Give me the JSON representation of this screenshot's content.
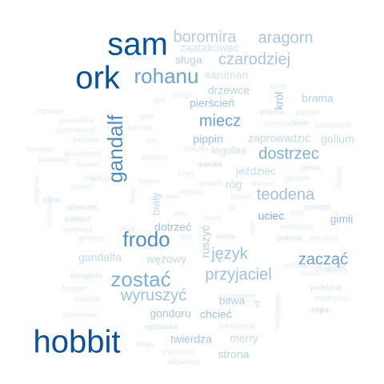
{
  "words": [
    {
      "text": "sam",
      "size": 5,
      "color": "#08519c"
    },
    {
      "text": "ork",
      "size": 5,
      "color": "#08519c"
    },
    {
      "text": "hobbit",
      "size": 5,
      "color": "#08519c"
    },
    {
      "text": "gandalf",
      "size": 4,
      "color": "#4f8fc3"
    },
    {
      "text": "boromira",
      "size": 3,
      "color": "#b3cde3"
    },
    {
      "text": "aragorn",
      "size": 3,
      "color": "#a9c7e2"
    },
    {
      "text": "zaatakować",
      "size": 2,
      "color": "#d4e3f0"
    },
    {
      "text": "czarodziej",
      "size": 3,
      "color": "#a9c7e2"
    },
    {
      "text": "sługa",
      "size": 2,
      "color": "#b8d2e8"
    },
    {
      "text": "rohanu",
      "size": 4,
      "color": "#6aa3d0"
    },
    {
      "text": "sauruna",
      "size": 1,
      "color": "#e1ebf4"
    },
    {
      "text": "saruman",
      "size": 2,
      "color": "#d4e3f0"
    },
    {
      "text": "drzewce",
      "size": 2,
      "color": "#b8d2e8"
    },
    {
      "text": "czele",
      "size": 1,
      "color": "#e1ebf4"
    },
    {
      "text": "król",
      "size": 2,
      "color": "#9fc2df"
    },
    {
      "text": "brama",
      "size": 2,
      "color": "#b8d2e8"
    },
    {
      "text": "pierścień",
      "size": 2,
      "color": "#9fc2df"
    },
    {
      "text": "miecz",
      "size": 3,
      "color": "#6aa3d0"
    },
    {
      "text": "pippina",
      "size": 1,
      "color": "#d4e3f0"
    },
    {
      "text": "kapitan",
      "size": 1,
      "color": "#e1ebf4"
    },
    {
      "text": "odzyskać",
      "size": 1,
      "color": "#e1ebf4"
    },
    {
      "text": "wtem",
      "size": 1,
      "color": "#d4e3f0"
    },
    {
      "text": "pożegnanie",
      "size": 1,
      "color": "#e1ebf4"
    },
    {
      "text": "pippin",
      "size": 2,
      "color": "#9fc2df"
    },
    {
      "text": "zaprowadzić",
      "size": 2,
      "color": "#c6dbee"
    },
    {
      "text": "gollum",
      "size": 2,
      "color": "#c6dbee"
    },
    {
      "text": "legolas",
      "size": 2,
      "color": "#d4e3f0"
    },
    {
      "text": "dostrzec",
      "size": 3,
      "color": "#7fb0d8"
    },
    {
      "text": "ziemia",
      "size": 1,
      "color": "#d4e3f0"
    },
    {
      "text": "urwiska",
      "size": 1,
      "color": "#c6dbee"
    },
    {
      "text": "jeździec",
      "size": 2,
      "color": "#c6dbee"
    },
    {
      "text": "gniazdo",
      "size": 1,
      "color": "#e1ebf4"
    },
    {
      "text": "okazać",
      "size": 1,
      "color": "#e1ebf4"
    },
    {
      "text": "teodena",
      "size": 3,
      "color": "#9fc2df"
    },
    {
      "text": "róg",
      "size": 2,
      "color": "#c6dbee"
    },
    {
      "text": "umrzeć",
      "size": 1,
      "color": "#e1ebf4"
    },
    {
      "text": "smeagol",
      "size": 1,
      "color": "#d4e3f0"
    },
    {
      "text": "uciec",
      "size": 2,
      "color": "#7fb0d8"
    },
    {
      "text": "cały",
      "size": 1,
      "color": "#e1ebf4"
    },
    {
      "text": "gimli",
      "size": 2,
      "color": "#9fc2df"
    },
    {
      "text": "możliwość",
      "size": 1,
      "color": "#e1ebf4"
    },
    {
      "text": "golluma",
      "size": 1,
      "color": "#d4e3f0"
    },
    {
      "text": "mordoru",
      "size": 1,
      "color": "#e1ebf4"
    },
    {
      "text": "frodo",
      "size": 4,
      "color": "#4f8fc3"
    },
    {
      "text": "dotrzeć",
      "size": 2,
      "color": "#9fc2df"
    },
    {
      "text": "ruszyć",
      "size": 2,
      "color": "#b3cde3"
    },
    {
      "text": "język",
      "size": 3,
      "color": "#9fc2df"
    },
    {
      "text": "zacząć",
      "size": 3,
      "color": "#6aa3d0"
    },
    {
      "text": "wężowy",
      "size": 2,
      "color": "#c6dbee"
    },
    {
      "text": "gandalfa",
      "size": 2,
      "color": "#c6dbee"
    },
    {
      "text": "zostać",
      "size": 4,
      "color": "#7fb0d8"
    },
    {
      "text": "przyjaciel",
      "size": 3,
      "color": "#9fc2df"
    },
    {
      "text": "wyruszyć",
      "size": 3,
      "color": "#9fc2df"
    },
    {
      "text": "bitwa",
      "size": 2,
      "color": "#b3cde3"
    },
    {
      "text": "elf",
      "size": 1,
      "color": "#c6dbee"
    },
    {
      "text": "podróżnik",
      "size": 1,
      "color": "#d4e3f0"
    },
    {
      "text": "ostateczny",
      "size": 1,
      "color": "#e1ebf4"
    },
    {
      "text": "trójka",
      "size": 1,
      "color": "#c6dbee"
    },
    {
      "text": "gondoru",
      "size": 2,
      "color": "#a9c7e2"
    },
    {
      "text": "chcieć",
      "size": 2,
      "color": "#9fc2df"
    },
    {
      "text": "wędrówka",
      "size": 1,
      "color": "#d4e3f0"
    },
    {
      "text": "twierdza",
      "size": 2,
      "color": "#a9c7e2"
    },
    {
      "text": "merry",
      "size": 2,
      "color": "#c6dbee"
    },
    {
      "text": "strona",
      "size": 2,
      "color": "#b8d2e8"
    },
    {
      "text": "odźwierny",
      "size": 1,
      "color": "#e1ebf4"
    },
    {
      "text": "isengardu",
      "size": 1,
      "color": "#d4e3f0"
    },
    {
      "text": "fangorn",
      "size": 1,
      "color": "#e1ebf4"
    },
    {
      "text": "zagłada",
      "size": 1,
      "color": "#e1ebf4"
    },
    {
      "text": "pozostawić",
      "size": 1,
      "color": "#e1ebf4"
    },
    {
      "text": "droga",
      "size": 1,
      "color": "#e1ebf4"
    },
    {
      "text": "znajdywać",
      "size": 1,
      "color": "#e1ebf4"
    },
    {
      "text": "zdradziecki",
      "size": 1,
      "color": "#e1ebf4"
    },
    {
      "text": "sarumanem",
      "size": 1,
      "color": "#e1ebf4"
    },
    {
      "text": "helmowego",
      "size": 1,
      "color": "#e1ebf4"
    },
    {
      "text": "drzewiec",
      "size": 1,
      "color": "#e1ebf4"
    },
    {
      "text": "aragorna",
      "size": 1,
      "color": "#e1ebf4"
    },
    {
      "text": "sarumana",
      "size": 1,
      "color": "#e1ebf4"
    },
    {
      "text": "odpocząć",
      "size": 1,
      "color": "#d4e3f0"
    },
    {
      "text": "pająk",
      "size": 1,
      "color": "#d4e3f0"
    },
    {
      "text": "gimliego",
      "size": 1,
      "color": "#e1ebf4"
    },
    {
      "text": "pokazać",
      "size": 1,
      "color": "#e1ebf4"
    },
    {
      "text": "śmierć",
      "size": 1,
      "color": "#e1ebf4"
    },
    {
      "text": "drzewo",
      "size": 1,
      "color": "#e1ebf4"
    },
    {
      "text": "gamgee",
      "size": 1,
      "color": "#e1ebf4"
    },
    {
      "text": "przemierzać",
      "size": 1,
      "color": "#e1ebf4"
    },
    {
      "text": "przewodca",
      "size": 1,
      "color": "#e1ebf4"
    },
    {
      "text": "legolasa",
      "size": 1,
      "color": "#e1ebf4"
    },
    {
      "text": "krasnolud",
      "size": 1,
      "color": "#e1ebf4"
    },
    {
      "text": "rumair",
      "size": 1,
      "color": "#e1ebf4"
    },
    {
      "text": "długi",
      "size": 1,
      "color": "#e1ebf4"
    },
    {
      "text": "szczelina",
      "size": 1,
      "color": "#e1ebf4"
    },
    {
      "text": "teoden",
      "size": 1,
      "color": "#e1ebf4"
    },
    {
      "text": "rzucić",
      "size": 1,
      "color": "#e1ebf4"
    },
    {
      "text": "wieża",
      "size": 1,
      "color": "#d4e3f0"
    },
    {
      "text": "wojsko",
      "size": 1,
      "color": "#e1ebf4"
    },
    {
      "text": "moc",
      "size": 1,
      "color": "#e1ebf4"
    },
    {
      "text": "dotrwarz",
      "size": 1,
      "color": "#e1ebf4"
    },
    {
      "text": "faramir",
      "size": 1,
      "color": "#e1ebf4"
    },
    {
      "text": "wszyscy",
      "size": 1,
      "color": "#e1ebf4"
    },
    {
      "text": "ścieżka",
      "size": 1,
      "color": "#e1ebf4"
    },
    {
      "text": "czas",
      "size": 1,
      "color": "#e1ebf4"
    },
    {
      "text": "smiałek",
      "size": 1,
      "color": "#e1ebf4"
    },
    {
      "text": "drugi",
      "size": 1,
      "color": "#e1ebf4"
    },
    {
      "text": "biały",
      "size": 2,
      "color": "#c6dbee"
    },
    {
      "text": "koń",
      "size": 1,
      "color": "#e1ebf4"
    },
    {
      "text": "jar",
      "size": 1,
      "color": "#e1ebf4"
    },
    {
      "text": "ego",
      "size": 1,
      "color": "#e1ebf4"
    },
    {
      "text": "entowy",
      "size": 1,
      "color": "#e1ebf4"
    },
    {
      "text": "stolica",
      "size": 1,
      "color": "#e1ebf4"
    },
    {
      "text": "przyjaciół",
      "size": 1,
      "color": "#e1ebf4"
    },
    {
      "text": "szeloby",
      "size": 1,
      "color": "#e1ebf4"
    },
    {
      "text": "noc",
      "size": 1,
      "color": "#e1ebf4"
    },
    {
      "text": "gród",
      "size": 1,
      "color": "#e1ebf4"
    },
    {
      "text": "dym",
      "size": 1,
      "color": "#e1ebf4"
    },
    {
      "text": "miego",
      "size": 1,
      "color": "#e1ebf4"
    },
    {
      "text": "zabrać",
      "size": 1,
      "color": "#e1ebf4"
    },
    {
      "text": "początkowy",
      "size": 1,
      "color": "#e1ebf4"
    },
    {
      "text": "swoim",
      "size": 1,
      "color": "#e1ebf4"
    },
    {
      "text": "dłuższy",
      "size": 1,
      "color": "#e1ebf4"
    },
    {
      "text": "podczas",
      "size": 1,
      "color": "#e1ebf4"
    }
  ]
}
